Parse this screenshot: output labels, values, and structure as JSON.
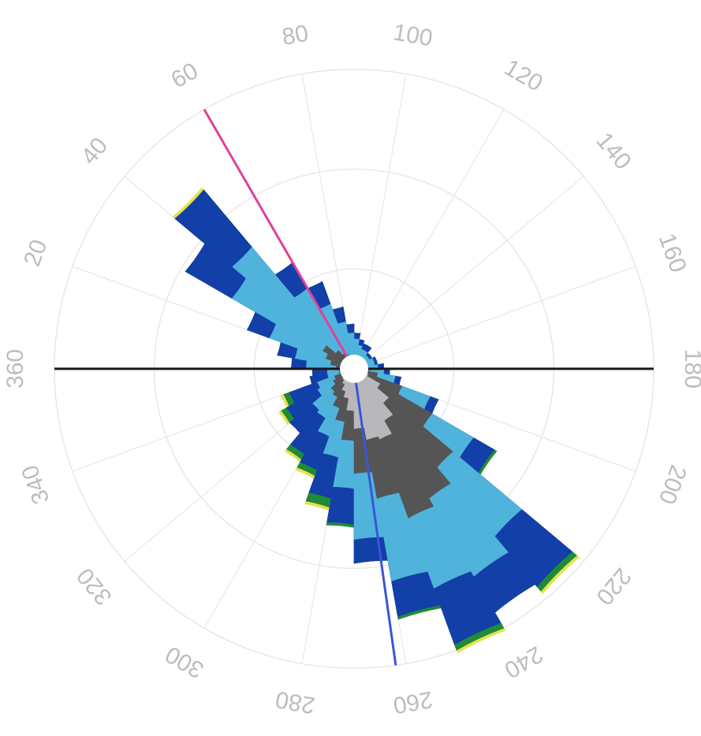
{
  "chart_data": {
    "type": "polar-rose",
    "title": "",
    "angular_tick_labels": [
      "360",
      "20",
      "40",
      "60",
      "80",
      "100",
      "120",
      "140",
      "160",
      "180",
      "200",
      "220",
      "240",
      "260",
      "280",
      "300",
      "320",
      "340"
    ],
    "angular_tick_values": [
      0,
      20,
      40,
      60,
      80,
      100,
      120,
      140,
      160,
      180,
      200,
      220,
      240,
      260,
      280,
      300,
      320,
      340
    ],
    "radial_rings": 3,
    "grid": true,
    "reference_lines": [
      {
        "direction_deg": 0,
        "color": "#1a1a1a"
      },
      {
        "direction_deg": 60,
        "color": "#e0409a"
      },
      {
        "direction_deg": 262,
        "color": "#3b55d9"
      }
    ],
    "bin_width_deg": 10,
    "bin_directions_deg": [
      5,
      15,
      25,
      35,
      45,
      55,
      65,
      75,
      85,
      95,
      105,
      115,
      125,
      135,
      145,
      155,
      165,
      175,
      185,
      195,
      205,
      215,
      225,
      235,
      245,
      255,
      265,
      275,
      285,
      295,
      305,
      315,
      325,
      335,
      345,
      355
    ],
    "band_colors": [
      "#b8b8bc",
      "#555555",
      "#4fb3dc",
      "#123fa8",
      "#1f8a3a",
      "#e8e04a"
    ],
    "series": [
      {
        "values": [
          0.02,
          0.02,
          0.02,
          0.02,
          0.02,
          0.02,
          0.02,
          0.02,
          0.02,
          0.02,
          0.02,
          0.02,
          0.02,
          0.02,
          0.02,
          0.02,
          0.02,
          0.02,
          0.02,
          0.02,
          0.05,
          0.1,
          0.15,
          0.2,
          0.25,
          0.24,
          0.2,
          0.14,
          0.1,
          0.08,
          0.06,
          0.05,
          0.04,
          0.03,
          0.02,
          0.02
        ]
      },
      {
        "values": [
          0.04,
          0.06,
          0.08,
          0.1,
          0.06,
          0.04,
          0.03,
          0.02,
          0.02,
          0.02,
          0.02,
          0.02,
          0.02,
          0.02,
          0.02,
          0.02,
          0.02,
          0.02,
          0.03,
          0.06,
          0.12,
          0.2,
          0.28,
          0.3,
          0.28,
          0.2,
          0.15,
          0.1,
          0.08,
          0.06,
          0.05,
          0.05,
          0.04,
          0.04,
          0.03,
          0.03
        ]
      },
      {
        "values": [
          0.1,
          0.12,
          0.2,
          0.35,
          0.45,
          0.25,
          0.18,
          0.12,
          0.08,
          0.06,
          0.04,
          0.03,
          0.03,
          0.02,
          0.02,
          0.03,
          0.03,
          0.04,
          0.05,
          0.06,
          0.1,
          0.16,
          0.3,
          0.3,
          0.25,
          0.28,
          0.22,
          0.16,
          0.12,
          0.1,
          0.08,
          0.08,
          0.06,
          0.06,
          0.04,
          0.04
        ]
      },
      {
        "values": [
          0.05,
          0.06,
          0.08,
          0.18,
          0.25,
          0.1,
          0.08,
          0.05,
          0.03,
          0.02,
          0.02,
          0.02,
          0.02,
          0.01,
          0.01,
          0.01,
          0.01,
          0.02,
          0.02,
          0.02,
          0.03,
          0.08,
          0.22,
          0.14,
          0.2,
          0.12,
          0.08,
          0.12,
          0.14,
          0.12,
          0.14,
          0.1,
          0.12,
          0.1,
          0.06,
          0.05
        ]
      },
      {
        "values": [
          0.0,
          0.0,
          0.0,
          0.0,
          0.0,
          0.0,
          0.0,
          0.0,
          0.0,
          0.0,
          0.0,
          0.0,
          0.0,
          0.0,
          0.0,
          0.0,
          0.0,
          0.0,
          0.0,
          0.0,
          0.0,
          0.01,
          0.02,
          0.0,
          0.02,
          0.01,
          0.0,
          0.01,
          0.03,
          0.02,
          0.02,
          0.0,
          0.02,
          0.02,
          0.0,
          0.0
        ]
      },
      {
        "values": [
          0.0,
          0.0,
          0.0,
          0.0,
          0.01,
          0.0,
          0.0,
          0.0,
          0.0,
          0.0,
          0.0,
          0.0,
          0.0,
          0.0,
          0.0,
          0.0,
          0.0,
          0.0,
          0.0,
          0.0,
          0.0,
          0.0,
          0.01,
          0.0,
          0.01,
          0.0,
          0.0,
          0.0,
          0.01,
          0.01,
          0.01,
          0.0,
          0.01,
          0.01,
          0.0,
          0.0
        ]
      }
    ]
  }
}
